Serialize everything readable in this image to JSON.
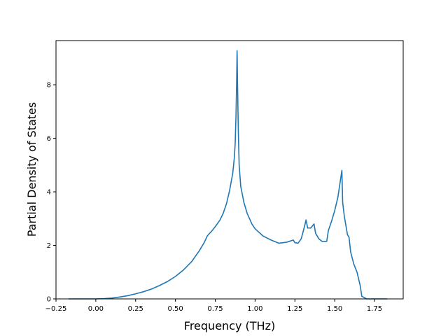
{
  "chart_data": {
    "type": "line",
    "xlabel": "Frequency (THz)",
    "ylabel": "Partial Density of States",
    "xlim": [
      -0.25,
      1.93
    ],
    "ylim": [
      0,
      9.65
    ],
    "xticks": [
      -0.25,
      0.0,
      0.25,
      0.5,
      0.75,
      1.0,
      1.25,
      1.5,
      1.75
    ],
    "xtick_labels": [
      "−0.25",
      "0.00",
      "0.25",
      "0.50",
      "0.75",
      "1.00",
      "1.25",
      "1.50",
      "1.75"
    ],
    "yticks": [
      0,
      2,
      4,
      6,
      8
    ],
    "ytick_labels": [
      "0",
      "2",
      "4",
      "6",
      "8"
    ],
    "grid": false,
    "series": [
      {
        "color": "#1f77b4",
        "x": [
          -0.17,
          0.0,
          0.05,
          0.1,
          0.15,
          0.2,
          0.25,
          0.3,
          0.35,
          0.4,
          0.45,
          0.5,
          0.55,
          0.6,
          0.65,
          0.68,
          0.7,
          0.71,
          0.73,
          0.75,
          0.78,
          0.8,
          0.82,
          0.84,
          0.86,
          0.87,
          0.875,
          0.88,
          0.884,
          0.887,
          0.89,
          0.895,
          0.9,
          0.91,
          0.93,
          0.95,
          0.98,
          1.0,
          1.05,
          1.1,
          1.15,
          1.2,
          1.24,
          1.25,
          1.27,
          1.29,
          1.31,
          1.32,
          1.33,
          1.35,
          1.37,
          1.38,
          1.4,
          1.42,
          1.45,
          1.46,
          1.48,
          1.5,
          1.52,
          1.53,
          1.545,
          1.55,
          1.56,
          1.58,
          1.59,
          1.6,
          1.62,
          1.64,
          1.66,
          1.67,
          1.7,
          1.83
        ],
        "y": [
          0,
          0,
          0.01,
          0.03,
          0.07,
          0.12,
          0.19,
          0.27,
          0.37,
          0.5,
          0.65,
          0.84,
          1.08,
          1.38,
          1.8,
          2.1,
          2.35,
          2.42,
          2.55,
          2.7,
          2.95,
          3.2,
          3.55,
          4.05,
          4.7,
          5.3,
          5.8,
          6.8,
          8.0,
          9.27,
          8.0,
          6.2,
          5.0,
          4.2,
          3.6,
          3.2,
          2.8,
          2.62,
          2.35,
          2.2,
          2.08,
          2.12,
          2.2,
          2.1,
          2.08,
          2.25,
          2.7,
          2.95,
          2.65,
          2.65,
          2.8,
          2.45,
          2.25,
          2.15,
          2.15,
          2.55,
          2.9,
          3.3,
          3.8,
          4.2,
          4.8,
          3.6,
          3.1,
          2.4,
          2.3,
          1.75,
          1.3,
          1.0,
          0.5,
          0.1,
          0,
          0
        ]
      }
    ]
  }
}
